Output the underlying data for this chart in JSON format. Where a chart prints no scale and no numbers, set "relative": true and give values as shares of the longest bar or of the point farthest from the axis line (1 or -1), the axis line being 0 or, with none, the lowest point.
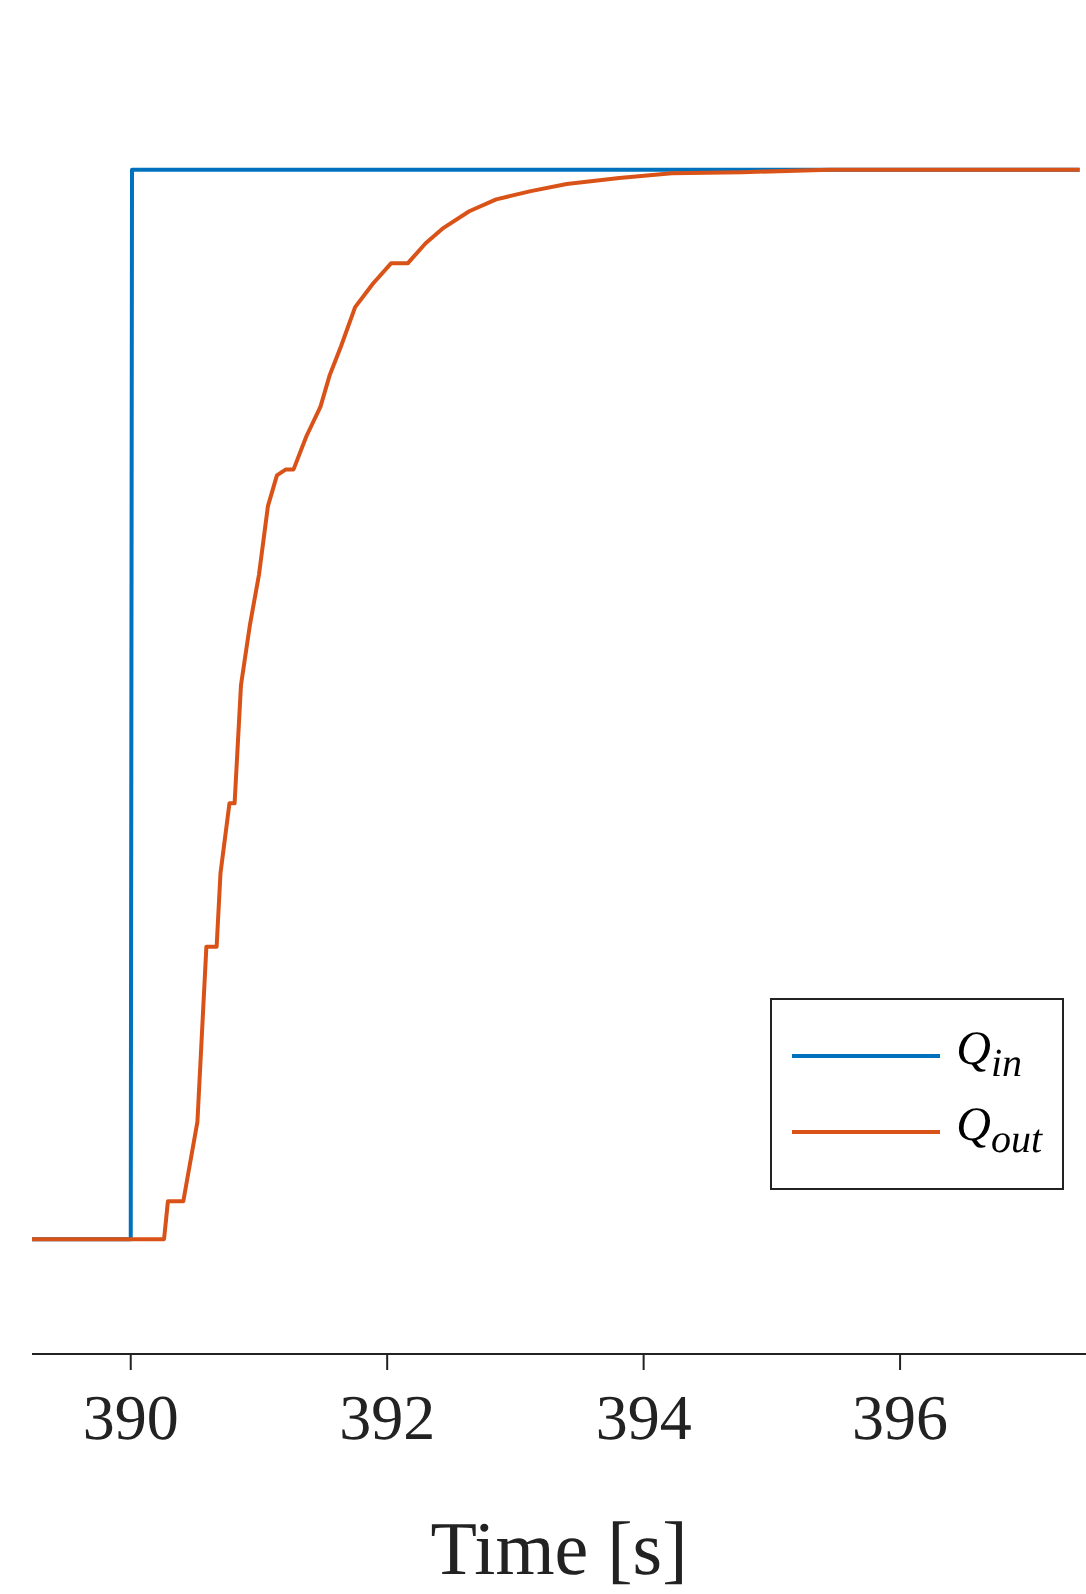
{
  "chart_data": {
    "type": "line",
    "relative": true,
    "xlabel": "Time [s]",
    "xlim": [
      389.23,
      397.45
    ],
    "xticks": [
      390,
      392,
      394,
      396
    ],
    "legend": "bottom right",
    "grid": false,
    "marker": "none",
    "line_style": "solid",
    "series": [
      {
        "name": "Q$_{in}$",
        "color": "#0072bd",
        "x": [
          389.23,
          390,
          390.01,
          397.4
        ],
        "values": [
          0.097,
          0.097,
          1,
          1
        ]
      },
      {
        "name": "Q$_{out}$",
        "color": "#d95319",
        "x": [
          389.23,
          390.26,
          390.29,
          390.41,
          390.52,
          390.59,
          390.67,
          390.7,
          390.77,
          390.81,
          390.86,
          390.93,
          391.0,
          391.07,
          391.14,
          391.21,
          391.27,
          391.37,
          391.48,
          391.55,
          391.64,
          391.75,
          391.89,
          392.03,
          392.16,
          392.3,
          392.44,
          392.64,
          392.85,
          393.12,
          393.4,
          393.81,
          394.22,
          394.77,
          395.45,
          396.45,
          397.4
        ],
        "values": [
          0.097,
          0.097,
          0.129,
          0.129,
          0.196,
          0.344,
          0.344,
          0.406,
          0.465,
          0.465,
          0.565,
          0.616,
          0.658,
          0.716,
          0.742,
          0.747,
          0.747,
          0.775,
          0.8,
          0.826,
          0.851,
          0.884,
          0.904,
          0.921,
          0.921,
          0.938,
          0.951,
          0.965,
          0.975,
          0.982,
          0.988,
          0.993,
          0.997,
          0.998,
          1,
          1,
          1
        ]
      }
    ]
  }
}
